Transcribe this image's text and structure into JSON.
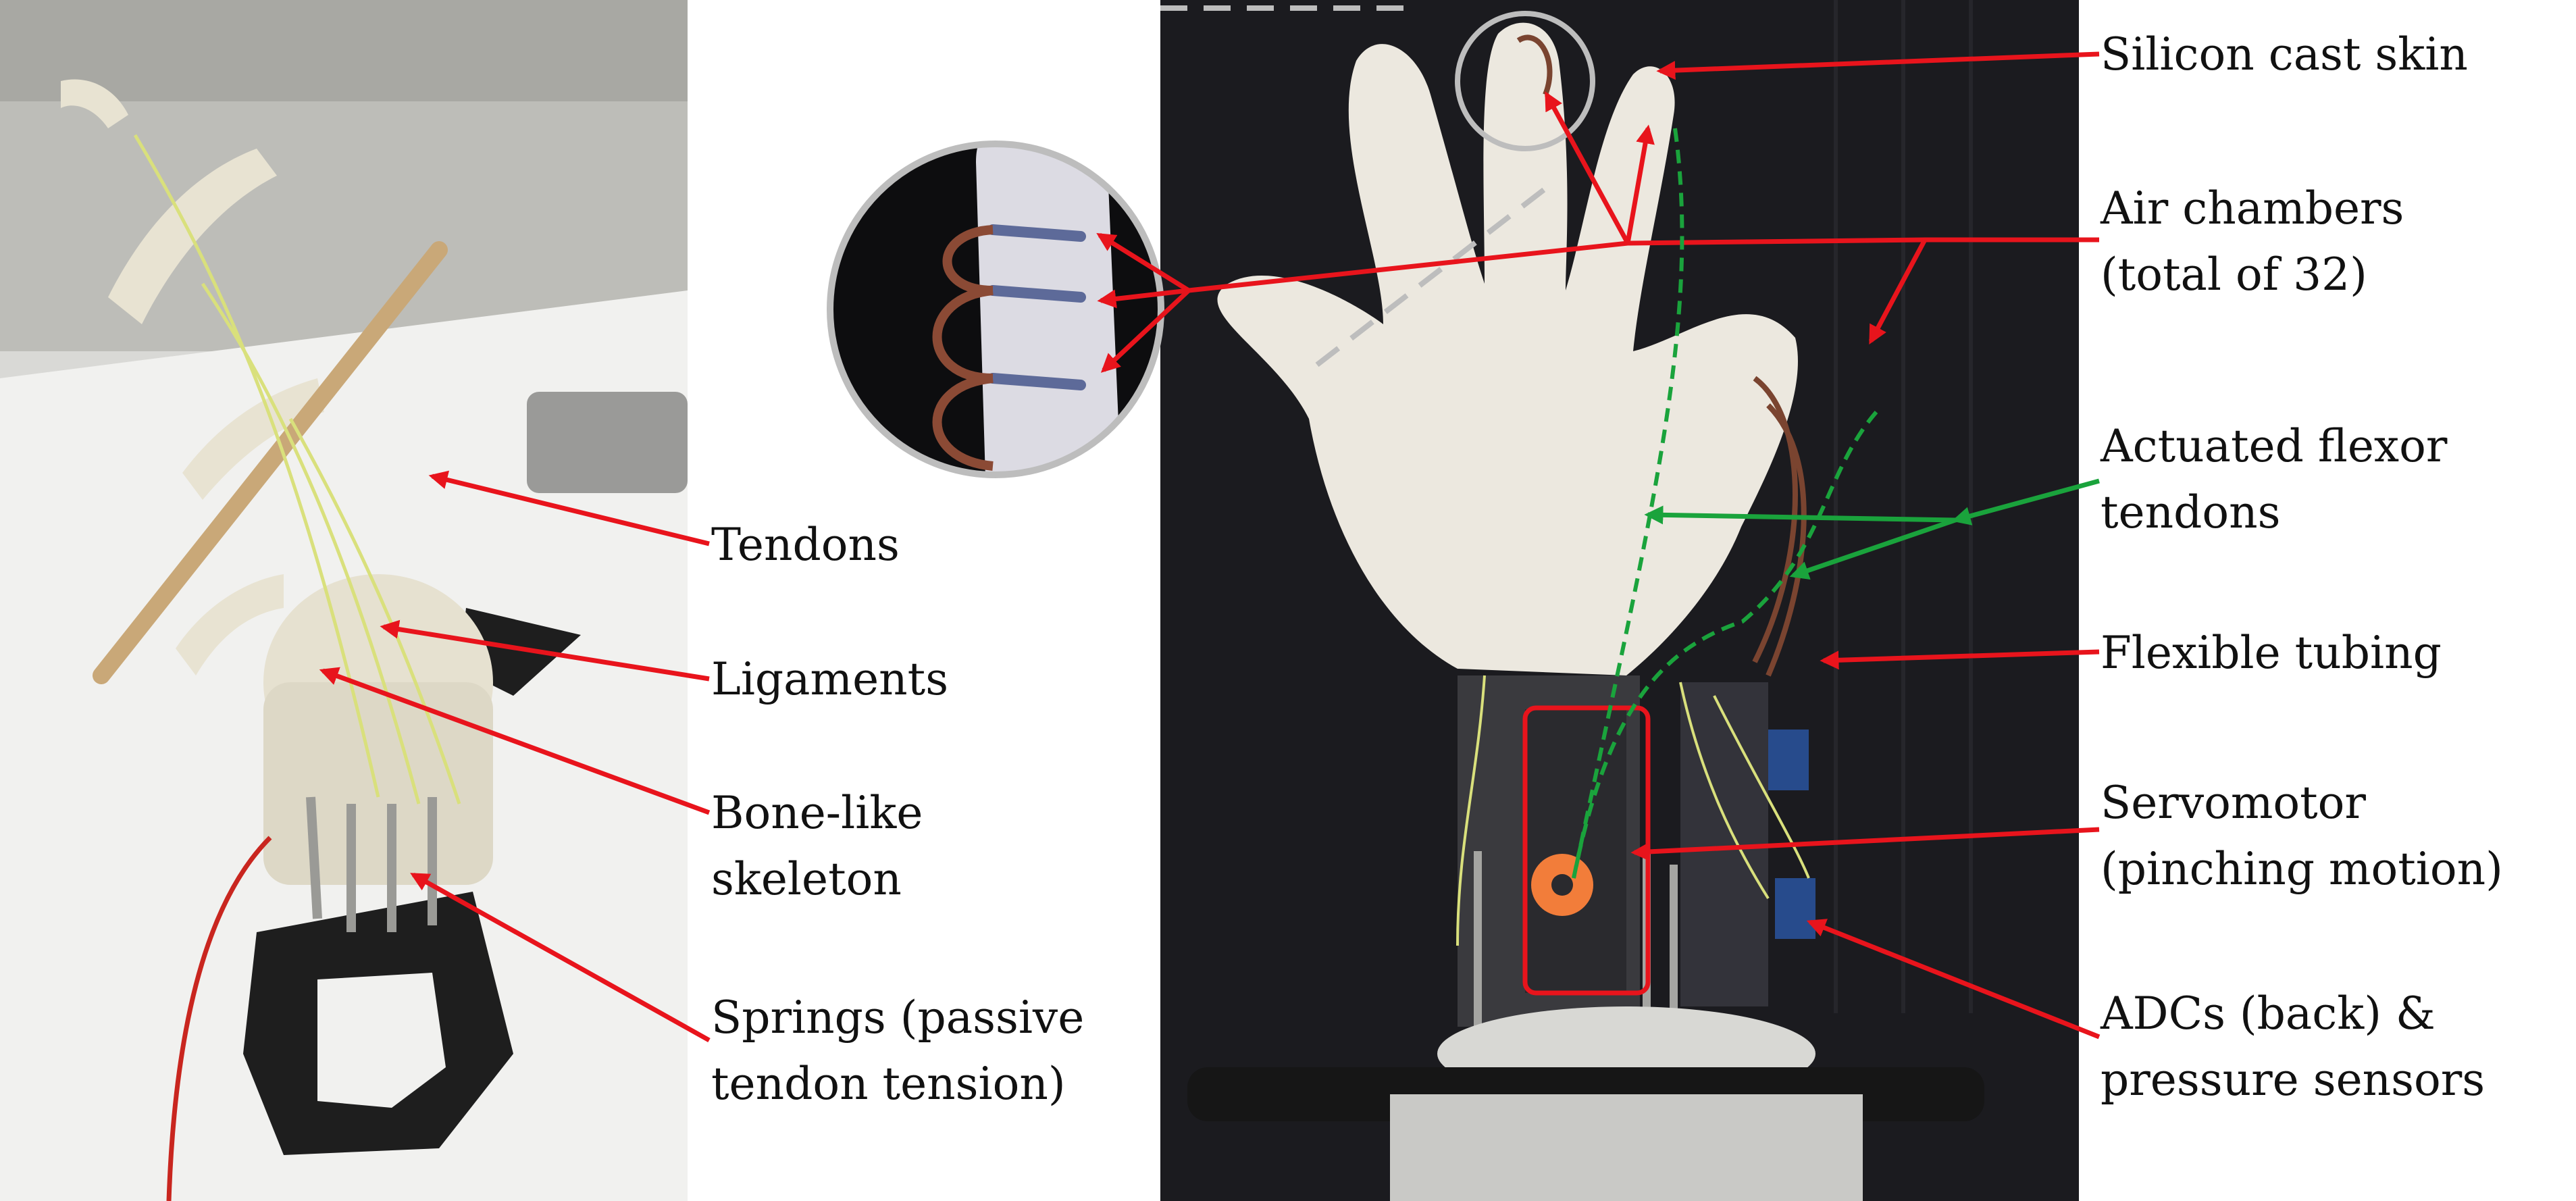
{
  "left_labels": [
    {
      "id": "tendons",
      "lines": [
        "Tendons"
      ]
    },
    {
      "id": "ligaments",
      "lines": [
        "Ligaments"
      ]
    },
    {
      "id": "skeleton",
      "lines": [
        "Bone-like",
        "skeleton"
      ]
    },
    {
      "id": "springs",
      "lines": [
        "Springs (passive",
        "tendon tension)"
      ]
    }
  ],
  "right_labels": [
    {
      "id": "skin",
      "lines": [
        "Silicon cast skin"
      ]
    },
    {
      "id": "air",
      "lines": [
        "Air chambers",
        "(total of 32)"
      ]
    },
    {
      "id": "flexor",
      "lines": [
        "Actuated flexor",
        "tendons"
      ]
    },
    {
      "id": "tubing",
      "lines": [
        "Flexible tubing"
      ]
    },
    {
      "id": "servo",
      "lines": [
        "Servomotor",
        "(pinching motion)"
      ]
    },
    {
      "id": "adc",
      "lines": [
        "ADCs (back) &",
        "pressure sensors"
      ]
    }
  ],
  "colors": {
    "arrow_red": "#e8141c",
    "arrow_green": "#1aa33c",
    "label_text": "#111111"
  }
}
